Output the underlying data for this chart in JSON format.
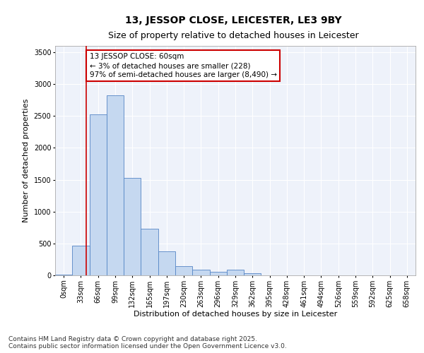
{
  "title1": "13, JESSOP CLOSE, LEICESTER, LE3 9BY",
  "title2": "Size of property relative to detached houses in Leicester",
  "xlabel": "Distribution of detached houses by size in Leicester",
  "ylabel": "Number of detached properties",
  "bar_values": [
    10,
    460,
    2530,
    2830,
    1530,
    730,
    380,
    145,
    90,
    55,
    90,
    30,
    5,
    5,
    2,
    1,
    1,
    0,
    0,
    0,
    0
  ],
  "bin_labels": [
    "0sqm",
    "33sqm",
    "66sqm",
    "99sqm",
    "132sqm",
    "165sqm",
    "197sqm",
    "230sqm",
    "263sqm",
    "296sqm",
    "329sqm",
    "362sqm",
    "395sqm",
    "428sqm",
    "461sqm",
    "494sqm",
    "526sqm",
    "559sqm",
    "592sqm",
    "625sqm",
    "658sqm"
  ],
  "bar_color": "#c5d8f0",
  "bar_edge_color": "#5585c5",
  "vline_x": 1.82,
  "vline_color": "#cc0000",
  "annotation_text": "13 JESSOP CLOSE: 60sqm\n← 3% of detached houses are smaller (228)\n97% of semi-detached houses are larger (8,490) →",
  "annotation_box_color": "#cc0000",
  "ylim": [
    0,
    3600
  ],
  "yticks": [
    0,
    500,
    1000,
    1500,
    2000,
    2500,
    3000,
    3500
  ],
  "background_color": "#eef2fa",
  "footer1": "Contains HM Land Registry data © Crown copyright and database right 2025.",
  "footer2": "Contains public sector information licensed under the Open Government Licence v3.0.",
  "title_fontsize": 10,
  "subtitle_fontsize": 9,
  "axis_label_fontsize": 8,
  "tick_fontsize": 7,
  "footer_fontsize": 6.5,
  "annotation_fontsize": 7.5
}
